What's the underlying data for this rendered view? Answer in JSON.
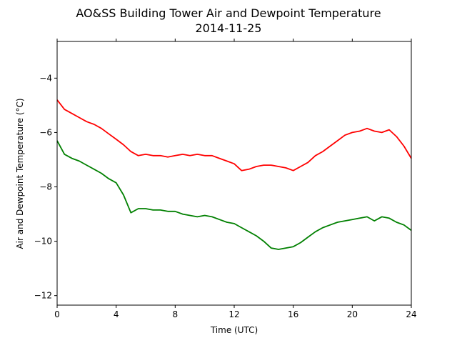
{
  "chart_data": {
    "type": "line",
    "title": "AO&SS Building Tower Air and Dewpoint Temperature",
    "subtitle": "2014-11-25",
    "xlabel": "Time (UTC)",
    "ylabel": "Air and Dewpoint Temperature (°C)",
    "xlim": [
      0,
      24
    ],
    "ylim": [
      -12.35,
      -2.65
    ],
    "x_ticks": [
      0,
      4,
      8,
      12,
      16,
      20,
      24
    ],
    "y_ticks": [
      -12,
      -10,
      -8,
      -6,
      -4
    ],
    "grid": false,
    "legend": "none",
    "series": [
      {
        "color": "#ff0000",
        "x": [
          0,
          0.5,
          1,
          1.5,
          2,
          2.5,
          3,
          3.5,
          4,
          4.5,
          5,
          5.5,
          6,
          6.5,
          7,
          7.5,
          8,
          8.5,
          9,
          9.5,
          10,
          10.5,
          11,
          11.5,
          12,
          12.5,
          13,
          13.5,
          14,
          14.5,
          15,
          15.5,
          16,
          16.5,
          17,
          17.5,
          18,
          18.5,
          19,
          19.5,
          20,
          20.5,
          21,
          21.5,
          22,
          22.5,
          23,
          23.5,
          24
        ],
        "y": [
          -4.8,
          -5.15,
          -5.3,
          -5.45,
          -5.6,
          -5.7,
          -5.85,
          -6.05,
          -6.25,
          -6.45,
          -6.7,
          -6.85,
          -6.8,
          -6.85,
          -6.85,
          -6.9,
          -6.85,
          -6.8,
          -6.85,
          -6.8,
          -6.85,
          -6.85,
          -6.95,
          -7.05,
          -7.15,
          -7.4,
          -7.35,
          -7.25,
          -7.2,
          -7.2,
          -7.25,
          -7.3,
          -7.4,
          -7.25,
          -7.1,
          -6.85,
          -6.7,
          -6.5,
          -6.3,
          -6.1,
          -6.0,
          -5.95,
          -5.85,
          -5.95,
          -6.0,
          -5.9,
          -6.15,
          -6.5,
          -6.95
        ]
      },
      {
        "color": "#008000",
        "x": [
          0,
          0.5,
          1,
          1.5,
          2,
          2.5,
          3,
          3.5,
          4,
          4.5,
          5,
          5.5,
          6,
          6.5,
          7,
          7.5,
          8,
          8.5,
          9,
          9.5,
          10,
          10.5,
          11,
          11.5,
          12,
          12.5,
          13,
          13.5,
          14,
          14.5,
          15,
          15.5,
          16,
          16.5,
          17,
          17.5,
          18,
          18.5,
          19,
          19.5,
          20,
          20.5,
          21,
          21.5,
          22,
          22.5,
          23,
          23.5,
          24
        ],
        "y": [
          -6.3,
          -6.8,
          -6.95,
          -7.05,
          -7.2,
          -7.35,
          -7.5,
          -7.7,
          -7.85,
          -8.3,
          -8.95,
          -8.8,
          -8.8,
          -8.85,
          -8.85,
          -8.9,
          -8.9,
          -9.0,
          -9.05,
          -9.1,
          -9.05,
          -9.1,
          -9.2,
          -9.3,
          -9.35,
          -9.5,
          -9.65,
          -9.8,
          -10.0,
          -10.25,
          -10.3,
          -10.25,
          -10.2,
          -10.05,
          -9.85,
          -9.65,
          -9.5,
          -9.4,
          -9.3,
          -9.25,
          -9.2,
          -9.15,
          -9.1,
          -9.25,
          -9.1,
          -9.15,
          -9.3,
          -9.4,
          -9.6
        ]
      }
    ]
  }
}
